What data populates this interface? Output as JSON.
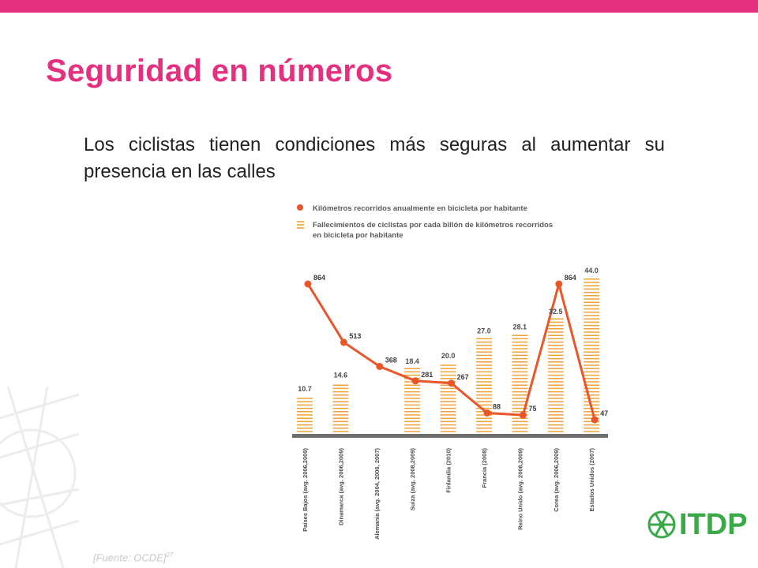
{
  "slide": {
    "title": "Seguridad en números",
    "subtitle": "Los ciclistas tienen condiciones más seguras al aumentar su presencia en las calles",
    "source": "[Fuente: OCDE]",
    "source_ref": "27",
    "logo_text": "ITDP"
  },
  "colors": {
    "accent": "#e5307f",
    "line_series": "#e8562a",
    "bar_series": "#f2a23a",
    "baseline": "#6e6e6e",
    "logo": "#3aaa49"
  },
  "chart_data": {
    "type": "bar",
    "legend_position": "top-left",
    "grid": false,
    "categories": [
      "Países Bajos (avg. 2006,2009)",
      "Dinamarca (avg. 2006,2009)",
      "Alemania (avg. 2004, 2006, 2007)",
      "Suiza (avg. 2008,2009)",
      "Finlandia (2010)",
      "Francia (2008)",
      "Reino Unido (avg. 2008,2009)",
      "Corea (avg. 2006,2009)",
      "Estados Unidos (2007)"
    ],
    "series": [
      {
        "name": "Kilómetros recorridos anualmente en bicicleta por habitante",
        "type": "line",
        "values": [
          864,
          513,
          368,
          281,
          267,
          88,
          75,
          864,
          47
        ]
      },
      {
        "name": "Fallecimientos de ciclistas por cada billón de kilómetros recorridos en bicicleta por habitante",
        "type": "bar",
        "values": [
          10.7,
          14.6,
          null,
          18.4,
          20.0,
          27.0,
          28.1,
          32.5,
          44.0
        ]
      }
    ],
    "bar_labels": [
      "10.7",
      "14.6",
      "",
      "18.4",
      "20.0",
      "27.0",
      "28.1",
      "32.5",
      "44.0"
    ],
    "line_labels": [
      "864",
      "513",
      "368",
      "281",
      "267",
      "88",
      "75",
      "864",
      "47"
    ],
    "bar_ylim": [
      0,
      44.0
    ],
    "line_ylim": [
      0,
      864
    ]
  }
}
